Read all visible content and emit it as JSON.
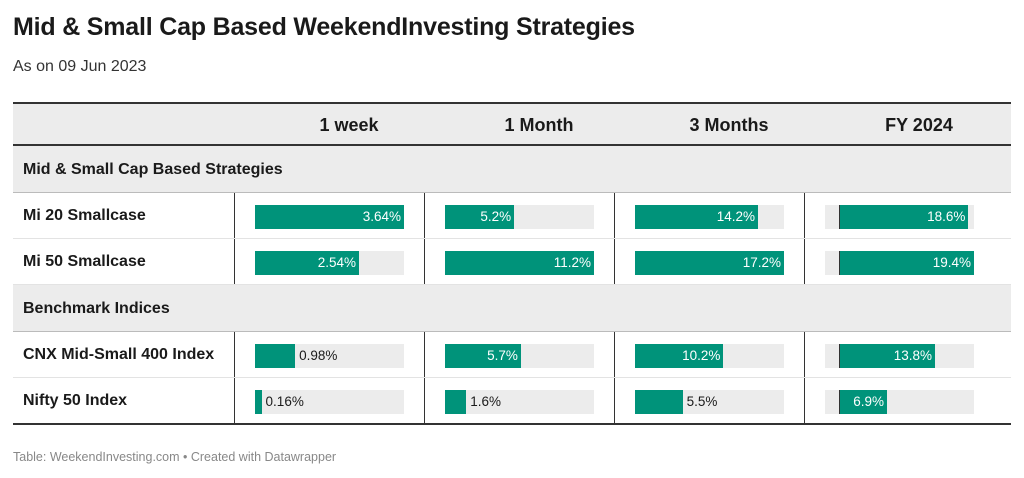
{
  "title": "Mid & Small Cap Based WeekendInvesting Strategies",
  "subtitle": "As on 09 Jun 2023",
  "footer": "Table: WeekendInvesting.com • Created with Datawrapper",
  "colors": {
    "bar": "#00937a",
    "track": "#ececec",
    "header_bg": "#ececec"
  },
  "chart_data": {
    "type": "table",
    "columns": [
      "1 week",
      "1 Month",
      "3 Months",
      "FY 2024"
    ],
    "column_scales": [
      {
        "min": 0,
        "max": 3.64
      },
      {
        "min": 0,
        "max": 11.2
      },
      {
        "min": 0,
        "max": 17.2
      },
      {
        "min": -2,
        "max": 19.4
      }
    ],
    "groups": [
      {
        "name": "Mid & Small Cap Based Strategies",
        "rows": [
          {
            "label": "Mi 20 Smallcase",
            "values": [
              3.64,
              5.2,
              14.2,
              18.6
            ],
            "labels": [
              "3.64%",
              "5.2%",
              "14.2%",
              "18.6%"
            ]
          },
          {
            "label": "Mi 50 Smallcase",
            "values": [
              2.54,
              11.2,
              17.2,
              19.4
            ],
            "labels": [
              "2.54%",
              "11.2%",
              "17.2%",
              "19.4%"
            ]
          }
        ]
      },
      {
        "name": "Benchmark Indices",
        "rows": [
          {
            "label": "CNX Mid-Small 400 Index",
            "values": [
              0.98,
              5.7,
              10.2,
              13.8
            ],
            "labels": [
              "0.98%",
              "5.7%",
              "10.2%",
              "13.8%"
            ]
          },
          {
            "label": "Nifty 50 Index",
            "values": [
              0.16,
              1.6,
              5.5,
              6.9
            ],
            "labels": [
              "0.16%",
              "1.6%",
              "5.5%",
              "6.9%"
            ]
          }
        ]
      }
    ]
  }
}
